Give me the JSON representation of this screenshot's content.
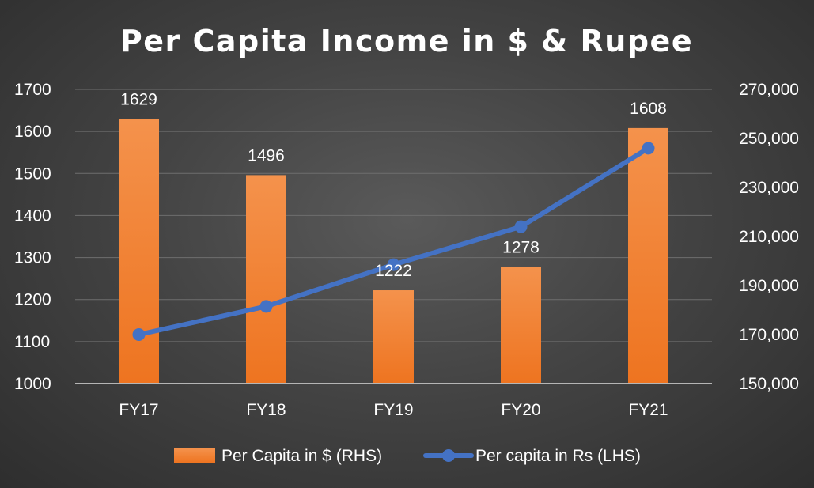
{
  "chart_data": {
    "type": "bar",
    "title": "Per Capita Income in $ & Rupee",
    "categories": [
      "FY17",
      "FY18",
      "FY19",
      "FY20",
      "FY21"
    ],
    "series": [
      {
        "name": "Per Capita in $ (RHS)",
        "type": "bar",
        "axis": "left",
        "values": [
          1629,
          1496,
          1222,
          1278,
          1608
        ],
        "data_labels": [
          "1629",
          "1496",
          "1222",
          "1278",
          "1608"
        ],
        "color": "#f07f2a"
      },
      {
        "name": "Per capita in Rs (LHS)",
        "type": "line",
        "axis": "right",
        "values": [
          170000,
          181500,
          198500,
          214000,
          246000
        ],
        "color": "#4472c4"
      }
    ],
    "y_left": {
      "min": 1000,
      "max": 1700,
      "step": 100,
      "ticks": [
        "1000",
        "1100",
        "1200",
        "1300",
        "1400",
        "1500",
        "1600",
        "1700"
      ]
    },
    "y_right": {
      "min": 150000,
      "max": 270000,
      "step": 20000,
      "ticks": [
        "150,000",
        "170,000",
        "190,000",
        "210,000",
        "230,000",
        "250,000",
        "270,000"
      ]
    },
    "grid": true,
    "legend_position": "bottom"
  }
}
